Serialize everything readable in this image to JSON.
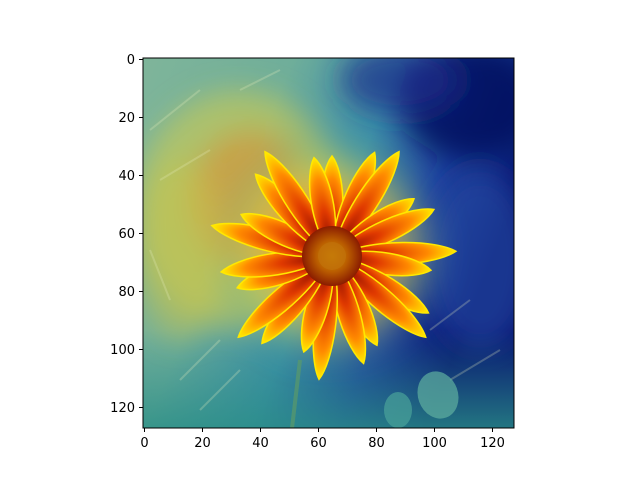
{
  "figure": {
    "x_ticks": [
      "0",
      "20",
      "40",
      "60",
      "80",
      "100",
      "120"
    ],
    "y_ticks": [
      "0",
      "20",
      "40",
      "60",
      "80",
      "100",
      "120"
    ],
    "image_extent": {
      "xmin": 0,
      "xmax": 128,
      "ymin": 0,
      "ymax": 128
    },
    "overlay_colormap": "jet",
    "colors": {
      "background": "#ffffff",
      "axis": "#000000",
      "cold": "#00008b",
      "mid": "#3aa6a0",
      "warm": "#d9d24a",
      "hot": "#c62010",
      "petal_orange": "#ff7a00",
      "petal_tip": "#ffe600",
      "center": "#b83a00"
    }
  }
}
